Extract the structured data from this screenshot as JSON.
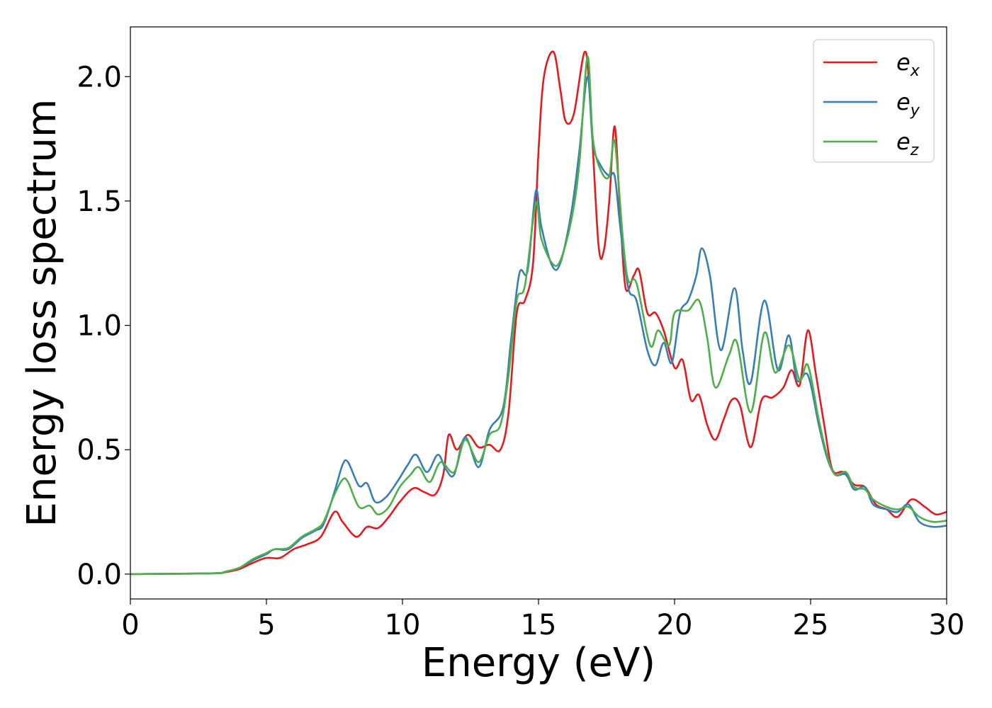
{
  "chart_data": {
    "type": "line",
    "xlabel": "Energy (eV)",
    "ylabel": "Energy loss spectrum",
    "xlim": [
      0,
      30
    ],
    "ylim": [
      -0.1,
      2.2
    ],
    "xticks": [
      0,
      5,
      10,
      15,
      20,
      25,
      30
    ],
    "xtick_labels": [
      "0",
      "5",
      "10",
      "15",
      "20",
      "25",
      "30"
    ],
    "yticks": [
      0.0,
      0.5,
      1.0,
      1.5,
      2.0
    ],
    "ytick_labels": [
      "0.0",
      "0.5",
      "1.0",
      "1.5",
      "2.0"
    ],
    "grid": false,
    "legend": "top-right",
    "series": [
      {
        "name": "e",
        "subscript": "x",
        "color": "#e41a1c",
        "points": [
          [
            0,
            0.0
          ],
          [
            3,
            0.003
          ],
          [
            3.5,
            0.008
          ],
          [
            4,
            0.02
          ],
          [
            4.5,
            0.045
          ],
          [
            5,
            0.065
          ],
          [
            5.5,
            0.065
          ],
          [
            6,
            0.1
          ],
          [
            6.5,
            0.12
          ],
          [
            7,
            0.15
          ],
          [
            7.5,
            0.25
          ],
          [
            7.8,
            0.21
          ],
          [
            8.3,
            0.15
          ],
          [
            8.7,
            0.19
          ],
          [
            9.1,
            0.185
          ],
          [
            9.5,
            0.23
          ],
          [
            9.9,
            0.29
          ],
          [
            10.4,
            0.345
          ],
          [
            10.8,
            0.33
          ],
          [
            11.2,
            0.32
          ],
          [
            11.5,
            0.4
          ],
          [
            11.7,
            0.56
          ],
          [
            12.0,
            0.5
          ],
          [
            12.4,
            0.56
          ],
          [
            12.8,
            0.51
          ],
          [
            13.2,
            0.52
          ],
          [
            13.6,
            0.5
          ],
          [
            13.9,
            0.65
          ],
          [
            14.2,
            1.05
          ],
          [
            14.5,
            1.1
          ],
          [
            14.8,
            1.25
          ],
          [
            15.0,
            1.7
          ],
          [
            15.2,
            2.0
          ],
          [
            15.55,
            2.1
          ],
          [
            15.8,
            1.95
          ],
          [
            16.0,
            1.82
          ],
          [
            16.3,
            1.85
          ],
          [
            16.7,
            2.1
          ],
          [
            16.9,
            1.9
          ],
          [
            17.2,
            1.33
          ],
          [
            17.4,
            1.3
          ],
          [
            17.6,
            1.5
          ],
          [
            17.8,
            1.8
          ],
          [
            18.0,
            1.45
          ],
          [
            18.2,
            1.15
          ],
          [
            18.5,
            1.2
          ],
          [
            18.7,
            1.22
          ],
          [
            19.0,
            1.05
          ],
          [
            19.3,
            1.05
          ],
          [
            19.6,
            0.98
          ],
          [
            20.0,
            0.83
          ],
          [
            20.3,
            0.86
          ],
          [
            20.6,
            0.7
          ],
          [
            20.9,
            0.72
          ],
          [
            21.2,
            0.6
          ],
          [
            21.5,
            0.54
          ],
          [
            21.8,
            0.62
          ],
          [
            22.1,
            0.7
          ],
          [
            22.4,
            0.68
          ],
          [
            22.8,
            0.51
          ],
          [
            23.2,
            0.7
          ],
          [
            23.6,
            0.71
          ],
          [
            24.0,
            0.75
          ],
          [
            24.3,
            0.82
          ],
          [
            24.6,
            0.76
          ],
          [
            24.9,
            0.98
          ],
          [
            25.2,
            0.8
          ],
          [
            25.5,
            0.6
          ],
          [
            25.8,
            0.42
          ],
          [
            26.2,
            0.41
          ],
          [
            26.6,
            0.36
          ],
          [
            27.0,
            0.35
          ],
          [
            27.4,
            0.28
          ],
          [
            27.8,
            0.26
          ],
          [
            28.2,
            0.23
          ],
          [
            28.7,
            0.3
          ],
          [
            29.2,
            0.27
          ],
          [
            29.6,
            0.24
          ],
          [
            30.0,
            0.25
          ]
        ]
      },
      {
        "name": "e",
        "subscript": "y",
        "color": "#377eb8",
        "points": [
          [
            0,
            0.0
          ],
          [
            3,
            0.003
          ],
          [
            3.5,
            0.01
          ],
          [
            4,
            0.025
          ],
          [
            4.5,
            0.055
          ],
          [
            5,
            0.08
          ],
          [
            5.3,
            0.1
          ],
          [
            5.8,
            0.1
          ],
          [
            6.3,
            0.145
          ],
          [
            6.8,
            0.175
          ],
          [
            7.1,
            0.2
          ],
          [
            7.5,
            0.33
          ],
          [
            7.8,
            0.44
          ],
          [
            8.0,
            0.45
          ],
          [
            8.4,
            0.355
          ],
          [
            8.7,
            0.365
          ],
          [
            9.0,
            0.29
          ],
          [
            9.4,
            0.31
          ],
          [
            9.8,
            0.37
          ],
          [
            10.2,
            0.44
          ],
          [
            10.5,
            0.48
          ],
          [
            10.9,
            0.41
          ],
          [
            11.3,
            0.48
          ],
          [
            11.6,
            0.42
          ],
          [
            11.9,
            0.4
          ],
          [
            12.3,
            0.55
          ],
          [
            12.8,
            0.43
          ],
          [
            13.2,
            0.58
          ],
          [
            13.7,
            0.67
          ],
          [
            14.0,
            0.95
          ],
          [
            14.3,
            1.21
          ],
          [
            14.6,
            1.22
          ],
          [
            14.9,
            1.54
          ],
          [
            15.1,
            1.4
          ],
          [
            15.5,
            1.24
          ],
          [
            15.8,
            1.25
          ],
          [
            16.2,
            1.45
          ],
          [
            16.5,
            1.7
          ],
          [
            16.8,
            2.0
          ],
          [
            17.0,
            1.73
          ],
          [
            17.3,
            1.64
          ],
          [
            17.6,
            1.6
          ],
          [
            17.8,
            1.6
          ],
          [
            18.0,
            1.4
          ],
          [
            18.3,
            1.15
          ],
          [
            18.6,
            1.1
          ],
          [
            19.0,
            0.9
          ],
          [
            19.3,
            0.84
          ],
          [
            19.6,
            0.93
          ],
          [
            19.9,
            0.85
          ],
          [
            20.2,
            1.05
          ],
          [
            20.5,
            1.1
          ],
          [
            20.8,
            1.2
          ],
          [
            21.0,
            1.31
          ],
          [
            21.3,
            1.2
          ],
          [
            21.7,
            0.9
          ],
          [
            22.2,
            1.15
          ],
          [
            22.5,
            0.9
          ],
          [
            22.8,
            0.77
          ],
          [
            23.3,
            1.1
          ],
          [
            23.8,
            0.82
          ],
          [
            24.2,
            0.96
          ],
          [
            24.5,
            0.78
          ],
          [
            24.9,
            0.8
          ],
          [
            25.3,
            0.6
          ],
          [
            25.6,
            0.47
          ],
          [
            25.9,
            0.4
          ],
          [
            26.3,
            0.4
          ],
          [
            26.6,
            0.34
          ],
          [
            27.0,
            0.35
          ],
          [
            27.3,
            0.28
          ],
          [
            27.8,
            0.26
          ],
          [
            28.2,
            0.25
          ],
          [
            28.6,
            0.28
          ],
          [
            29.0,
            0.21
          ],
          [
            29.5,
            0.19
          ],
          [
            30.0,
            0.195
          ]
        ]
      },
      {
        "name": "e",
        "subscript": "z",
        "color": "#4daf4a",
        "points": [
          [
            0,
            0.0
          ],
          [
            3,
            0.003
          ],
          [
            3.5,
            0.01
          ],
          [
            4,
            0.025
          ],
          [
            4.5,
            0.06
          ],
          [
            5,
            0.085
          ],
          [
            5.3,
            0.1
          ],
          [
            5.8,
            0.105
          ],
          [
            6.3,
            0.15
          ],
          [
            6.8,
            0.18
          ],
          [
            7.1,
            0.21
          ],
          [
            7.5,
            0.32
          ],
          [
            7.8,
            0.38
          ],
          [
            8.0,
            0.37
          ],
          [
            8.4,
            0.27
          ],
          [
            8.8,
            0.275
          ],
          [
            9.1,
            0.24
          ],
          [
            9.5,
            0.27
          ],
          [
            9.9,
            0.35
          ],
          [
            10.3,
            0.4
          ],
          [
            10.6,
            0.43
          ],
          [
            11.0,
            0.37
          ],
          [
            11.4,
            0.45
          ],
          [
            11.9,
            0.41
          ],
          [
            12.3,
            0.54
          ],
          [
            12.8,
            0.45
          ],
          [
            13.2,
            0.56
          ],
          [
            13.6,
            0.6
          ],
          [
            13.9,
            0.8
          ],
          [
            14.2,
            1.1
          ],
          [
            14.5,
            1.16
          ],
          [
            14.9,
            1.49
          ],
          [
            15.1,
            1.35
          ],
          [
            15.5,
            1.25
          ],
          [
            15.8,
            1.26
          ],
          [
            16.2,
            1.42
          ],
          [
            16.5,
            1.65
          ],
          [
            16.8,
            2.08
          ],
          [
            17.0,
            1.75
          ],
          [
            17.3,
            1.62
          ],
          [
            17.6,
            1.6
          ],
          [
            17.8,
            1.74
          ],
          [
            18.1,
            1.35
          ],
          [
            18.3,
            1.18
          ],
          [
            18.6,
            1.17
          ],
          [
            19.1,
            0.92
          ],
          [
            19.4,
            0.98
          ],
          [
            19.8,
            0.92
          ],
          [
            20.0,
            1.05
          ],
          [
            20.5,
            1.06
          ],
          [
            20.9,
            1.1
          ],
          [
            21.2,
            0.95
          ],
          [
            21.5,
            0.75
          ],
          [
            22.0,
            0.88
          ],
          [
            22.3,
            0.93
          ],
          [
            22.8,
            0.65
          ],
          [
            23.3,
            0.97
          ],
          [
            23.7,
            0.81
          ],
          [
            24.2,
            0.92
          ],
          [
            24.6,
            0.78
          ],
          [
            24.9,
            0.84
          ],
          [
            25.3,
            0.62
          ],
          [
            25.6,
            0.48
          ],
          [
            25.9,
            0.4
          ],
          [
            26.3,
            0.41
          ],
          [
            26.6,
            0.35
          ],
          [
            27.0,
            0.34
          ],
          [
            27.3,
            0.3
          ],
          [
            27.8,
            0.27
          ],
          [
            28.2,
            0.26
          ],
          [
            28.6,
            0.27
          ],
          [
            29.0,
            0.23
          ],
          [
            29.5,
            0.21
          ],
          [
            30.0,
            0.215
          ]
        ]
      }
    ]
  }
}
